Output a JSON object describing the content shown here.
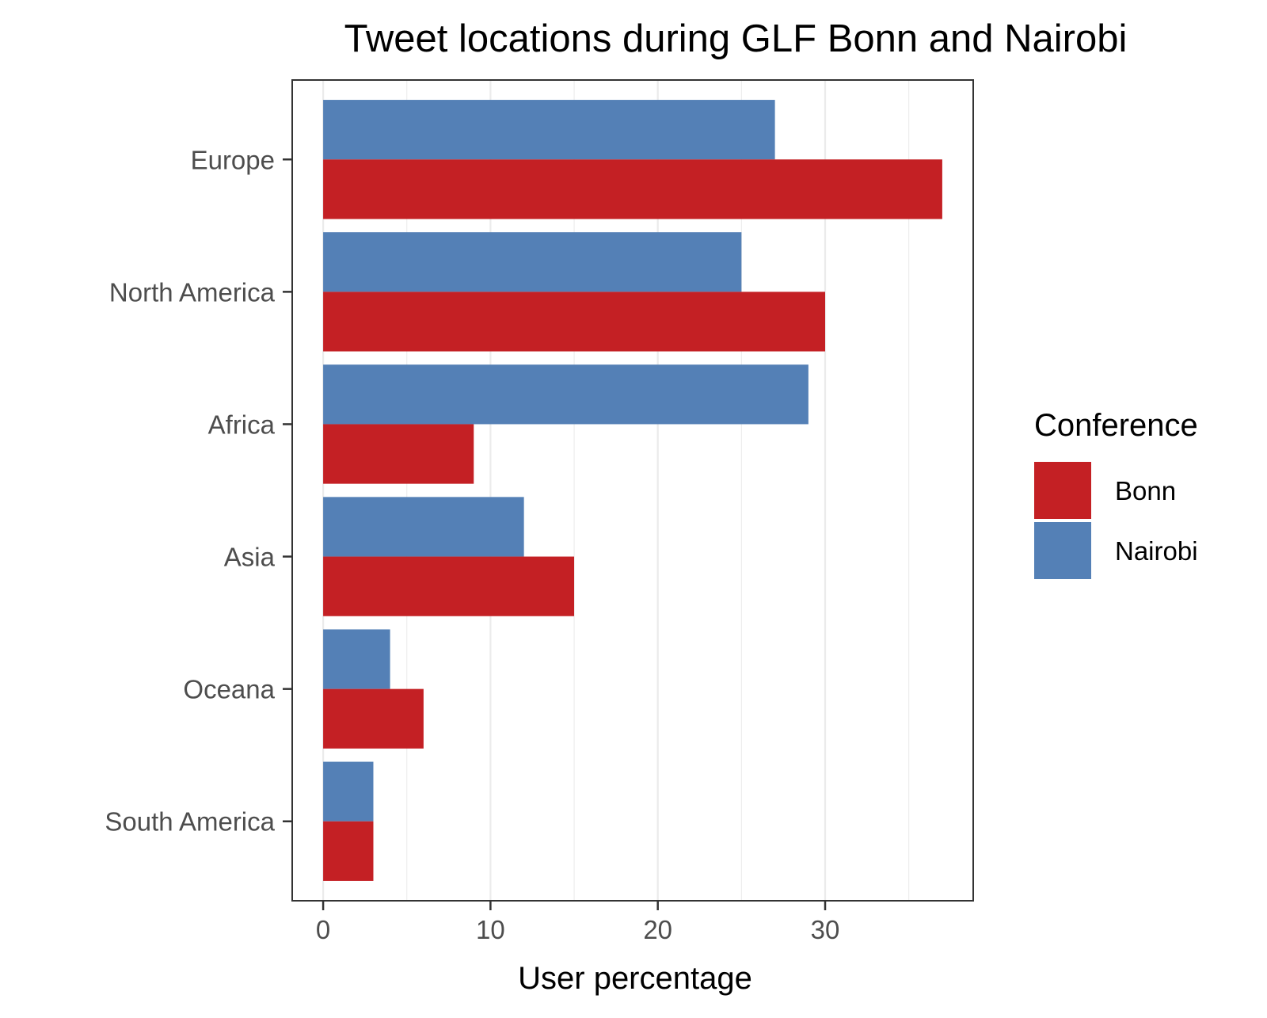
{
  "chart_data": {
    "type": "bar",
    "orientation": "horizontal",
    "title": "Tweet locations during GLF Bonn and Nairobi",
    "xlabel": "User percentage",
    "ylabel": "",
    "categories": [
      "Europe",
      "North America",
      "Africa",
      "Asia",
      "Oceana",
      "South America"
    ],
    "series": [
      {
        "name": "Nairobi",
        "color": "#5480b6",
        "values": [
          27,
          25,
          29,
          12,
          4,
          3
        ]
      },
      {
        "name": "Bonn",
        "color": "#c42024",
        "values": [
          37,
          30,
          9,
          15,
          6,
          3
        ]
      }
    ],
    "xlim": [
      -1.85,
      38.85
    ],
    "xticks": [
      0,
      10,
      20,
      30
    ],
    "grid": true,
    "legend": {
      "title": "Conference",
      "placement": "right",
      "entries": [
        {
          "name": "Bonn",
          "color": "#c42024"
        },
        {
          "name": "Nairobi",
          "color": "#5480b6"
        }
      ]
    }
  }
}
